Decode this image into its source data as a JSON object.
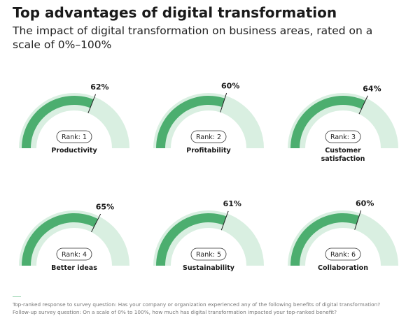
{
  "header": {
    "title": "Top advantages of digital transformation",
    "subtitle": "The impact of digital transformation on business areas, rated on a scale of 0%–100%"
  },
  "chart_data": {
    "type": "gauge",
    "range": [
      0,
      100
    ],
    "colors": {
      "fill": "#4cae6f",
      "track": "#d9efe1",
      "needle": "#222222"
    },
    "items": [
      {
        "label": "Productivity",
        "rank": "Rank: 1",
        "value": 62,
        "value_label": "62%"
      },
      {
        "label": "Profitability",
        "rank": "Rank: 2",
        "value": 60,
        "value_label": "60%"
      },
      {
        "label": "Customer satisfaction",
        "rank": "Rank: 3",
        "value": 64,
        "value_label": "64%"
      },
      {
        "label": "Better ideas",
        "rank": "Rank: 4",
        "value": 65,
        "value_label": "65%"
      },
      {
        "label": "Sustainability",
        "rank": "Rank: 5",
        "value": 61,
        "value_label": "61%"
      },
      {
        "label": "Collaboration",
        "rank": "Rank: 6",
        "value": 60,
        "value_label": "60%"
      }
    ]
  },
  "footnotes": [
    "Top-ranked response to survey question: Has your company or organization experienced any of the following benefits of digital transformation?",
    "Follow-up survey question: On a scale of 0% to 100%, how much has digital transformation impacted your top-ranked benefit?"
  ]
}
